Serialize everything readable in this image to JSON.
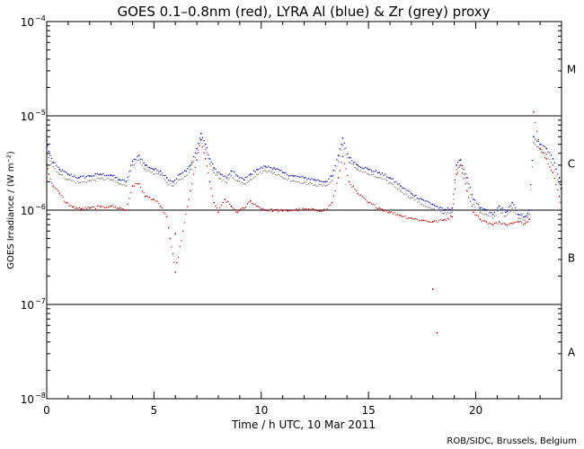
{
  "chart_data": {
    "type": "scatter",
    "title": "GOES 0.1–0.8nm (red), LYRA Al (blue) & Zr (grey) proxy",
    "xlabel": "Time / h UTC, 10 Mar 2011",
    "ylabel": "GOES Irradiance / (W m⁻²)",
    "xlim": [
      0,
      24
    ],
    "ylim_log10": [
      -8,
      -4
    ],
    "x_ticks": [
      {
        "value": 0,
        "label": "0"
      },
      {
        "value": 5,
        "label": "5"
      },
      {
        "value": 10,
        "label": "10"
      },
      {
        "value": 15,
        "label": "15"
      },
      {
        "value": 20,
        "label": "20"
      }
    ],
    "y_ticks": [
      {
        "exp": -8,
        "base": "10",
        "sup": "−8"
      },
      {
        "exp": -7,
        "base": "10",
        "sup": "−7"
      },
      {
        "exp": -6,
        "base": "10",
        "sup": "−6"
      },
      {
        "exp": -5,
        "base": "10",
        "sup": "−5"
      },
      {
        "exp": -4,
        "base": "10",
        "sup": "−4"
      }
    ],
    "flare_class_lines": [
      -7,
      -6,
      -5
    ],
    "flare_classes": [
      {
        "label": "A",
        "center_exp": -7.5
      },
      {
        "label": "B",
        "center_exp": -6.5
      },
      {
        "label": "C",
        "center_exp": -5.5
      },
      {
        "label": "M",
        "center_exp": -4.5
      }
    ],
    "credit": "ROB/SIDC, Brussels, Belgium",
    "series": [
      {
        "name": "LYRA Al proxy",
        "color": "#0000cc",
        "points": [
          [
            0.0,
            5.5e-06
          ],
          [
            0.1,
            4.2e-06
          ],
          [
            0.3,
            3.2e-06
          ],
          [
            0.6,
            2.7e-06
          ],
          [
            1.0,
            2.4e-06
          ],
          [
            1.5,
            2.2e-06
          ],
          [
            2.0,
            2.3e-06
          ],
          [
            2.5,
            2.4e-06
          ],
          [
            3.0,
            2.35e-06
          ],
          [
            3.4,
            2.1e-06
          ],
          [
            3.7,
            2e-06
          ],
          [
            4.0,
            3.3e-06
          ],
          [
            4.3,
            3.8e-06
          ],
          [
            4.6,
            3e-06
          ],
          [
            5.0,
            2.7e-06
          ],
          [
            5.3,
            2.6e-06
          ],
          [
            5.6,
            2.2e-06
          ],
          [
            5.9,
            2e-06
          ],
          [
            6.2,
            2.4e-06
          ],
          [
            6.5,
            2.6e-06
          ],
          [
            6.7,
            3e-06
          ],
          [
            7.0,
            4.5e-06
          ],
          [
            7.2,
            6.5e-06
          ],
          [
            7.4,
            5e-06
          ],
          [
            7.6,
            3.5e-06
          ],
          [
            7.8,
            2.8e-06
          ],
          [
            8.1,
            2.4e-06
          ],
          [
            8.4,
            2.2e-06
          ],
          [
            8.6,
            2.6e-06
          ],
          [
            8.9,
            2.3e-06
          ],
          [
            9.2,
            2.1e-06
          ],
          [
            9.5,
            2.4e-06
          ],
          [
            9.8,
            2.7e-06
          ],
          [
            10.2,
            2.9e-06
          ],
          [
            10.6,
            2.8e-06
          ],
          [
            11.0,
            2.5e-06
          ],
          [
            11.5,
            2.3e-06
          ],
          [
            12.0,
            2.2e-06
          ],
          [
            12.5,
            2.1e-06
          ],
          [
            13.0,
            2e-06
          ],
          [
            13.3,
            2.3e-06
          ],
          [
            13.6,
            3.8e-06
          ],
          [
            13.8,
            5.8e-06
          ],
          [
            14.1,
            3.6e-06
          ],
          [
            14.5,
            3e-06
          ],
          [
            15.0,
            2.7e-06
          ],
          [
            15.5,
            2.5e-06
          ],
          [
            16.0,
            2.2e-06
          ],
          [
            16.5,
            1.8e-06
          ],
          [
            17.0,
            1.5e-06
          ],
          [
            17.5,
            1.3e-06
          ],
          [
            18.0,
            1.15e-06
          ],
          [
            18.5,
            1e-06
          ],
          [
            18.9,
            1.05e-06
          ],
          [
            19.1,
            3e-06
          ],
          [
            19.3,
            3.4e-06
          ],
          [
            19.6,
            2.2e-06
          ],
          [
            19.9,
            1.3e-06
          ],
          [
            20.2,
            1.05e-06
          ],
          [
            20.5,
            1e-06
          ],
          [
            20.8,
            9e-07
          ],
          [
            21.1,
            1.1e-06
          ],
          [
            21.4,
            9.5e-07
          ],
          [
            21.7,
            1.2e-06
          ],
          [
            22.0,
            9e-07
          ],
          [
            22.3,
            8.5e-07
          ],
          [
            22.5,
            1e-06
          ],
          [
            22.7,
            6e-06
          ],
          [
            23.0,
            5e-06
          ],
          [
            23.3,
            4.5e-06
          ],
          [
            23.6,
            3.5e-06
          ],
          [
            23.9,
            2.2e-06
          ],
          [
            24.0,
            1.7e-06
          ]
        ]
      },
      {
        "name": "LYRA Zr proxy",
        "color": "#808080",
        "points": [
          [
            0.0,
            4.6e-06
          ],
          [
            0.1,
            3.6e-06
          ],
          [
            0.3,
            2.9e-06
          ],
          [
            0.6,
            2.4e-06
          ],
          [
            1.0,
            2.1e-06
          ],
          [
            1.5,
            1.95e-06
          ],
          [
            2.0,
            2.05e-06
          ],
          [
            2.5,
            2.15e-06
          ],
          [
            3.0,
            2.1e-06
          ],
          [
            3.4,
            1.9e-06
          ],
          [
            3.7,
            1.8e-06
          ],
          [
            4.0,
            3e-06
          ],
          [
            4.3,
            3.4e-06
          ],
          [
            4.6,
            2.7e-06
          ],
          [
            5.0,
            2.4e-06
          ],
          [
            5.3,
            2.35e-06
          ],
          [
            5.6,
            1.95e-06
          ],
          [
            5.9,
            1.8e-06
          ],
          [
            6.2,
            2.1e-06
          ],
          [
            6.5,
            2.3e-06
          ],
          [
            6.7,
            2.7e-06
          ],
          [
            7.0,
            4e-06
          ],
          [
            7.2,
            5.5e-06
          ],
          [
            7.4,
            4.4e-06
          ],
          [
            7.6,
            3.1e-06
          ],
          [
            7.8,
            2.5e-06
          ],
          [
            8.1,
            2.15e-06
          ],
          [
            8.4,
            1.95e-06
          ],
          [
            8.6,
            2.3e-06
          ],
          [
            8.9,
            2.05e-06
          ],
          [
            9.2,
            1.9e-06
          ],
          [
            9.5,
            2.1e-06
          ],
          [
            9.8,
            2.4e-06
          ],
          [
            10.2,
            2.6e-06
          ],
          [
            10.6,
            2.5e-06
          ],
          [
            11.0,
            2.2e-06
          ],
          [
            11.5,
            2.05e-06
          ],
          [
            12.0,
            1.95e-06
          ],
          [
            12.5,
            1.85e-06
          ],
          [
            13.0,
            1.8e-06
          ],
          [
            13.3,
            2.05e-06
          ],
          [
            13.6,
            3.3e-06
          ],
          [
            13.8,
            4.9e-06
          ],
          [
            14.1,
            3.2e-06
          ],
          [
            14.5,
            2.7e-06
          ],
          [
            15.0,
            2.4e-06
          ],
          [
            15.5,
            2.2e-06
          ],
          [
            16.0,
            1.95e-06
          ],
          [
            16.5,
            1.6e-06
          ],
          [
            17.0,
            1.35e-06
          ],
          [
            17.5,
            1.15e-06
          ],
          [
            18.0,
            1.02e-06
          ],
          [
            18.5,
            9.2e-07
          ],
          [
            18.9,
            9.5e-07
          ],
          [
            19.1,
            2.7e-06
          ],
          [
            19.3,
            3e-06
          ],
          [
            19.6,
            1.95e-06
          ],
          [
            19.9,
            1.15e-06
          ],
          [
            20.2,
            9.5e-07
          ],
          [
            20.5,
            9e-07
          ],
          [
            20.8,
            8.2e-07
          ],
          [
            21.1,
            1e-06
          ],
          [
            21.4,
            8.6e-07
          ],
          [
            21.7,
            1.05e-06
          ],
          [
            22.0,
            8.2e-07
          ],
          [
            22.3,
            7.8e-07
          ],
          [
            22.5,
            9e-07
          ],
          [
            22.7,
            5.2e-06
          ],
          [
            23.0,
            4.4e-06
          ],
          [
            23.3,
            3.9e-06
          ],
          [
            23.6,
            3e-06
          ],
          [
            23.9,
            1.9e-06
          ],
          [
            24.0,
            1.5e-06
          ]
        ]
      },
      {
        "name": "GOES 0.1-0.8nm",
        "color": "#cc0000",
        "points": [
          [
            0.0,
            3e-06
          ],
          [
            0.1,
            2.4e-06
          ],
          [
            0.3,
            1.8e-06
          ],
          [
            0.6,
            1.5e-06
          ],
          [
            0.9,
            1.2e-06
          ],
          [
            1.2,
            1.08e-06
          ],
          [
            1.6,
            1.03e-06
          ],
          [
            2.0,
            1.05e-06
          ],
          [
            2.5,
            1.08e-06
          ],
          [
            3.0,
            1.1e-06
          ],
          [
            3.4,
            1.05e-06
          ],
          [
            3.7,
            1e-06
          ],
          [
            4.0,
            1.8e-06
          ],
          [
            4.3,
            1.9e-06
          ],
          [
            4.6,
            1.4e-06
          ],
          [
            5.0,
            1.3e-06
          ],
          [
            5.3,
            1.1e-06
          ],
          [
            5.6,
            8.5e-07
          ],
          [
            5.75,
            5e-07
          ],
          [
            6.0,
            2.2e-07
          ],
          [
            6.7,
            1.6e-06
          ],
          [
            7.0,
            3.4e-06
          ],
          [
            7.2,
            5.6e-06
          ],
          [
            7.4,
            3.5e-06
          ],
          [
            7.6,
            2e-06
          ],
          [
            7.8,
            1.2e-06
          ],
          [
            8.0,
            9.5e-07
          ],
          [
            8.3,
            1.3e-06
          ],
          [
            8.6,
            1.1e-06
          ],
          [
            8.9,
            9.5e-07
          ],
          [
            9.2,
            1.05e-06
          ],
          [
            9.5,
            1.25e-06
          ],
          [
            9.8,
            1.1e-06
          ],
          [
            10.2,
            1e-06
          ],
          [
            10.6,
            1e-06
          ],
          [
            11.0,
            9.8e-07
          ],
          [
            11.5,
            1e-06
          ],
          [
            12.0,
            1.02e-06
          ],
          [
            12.5,
            1e-06
          ],
          [
            13.0,
            1e-06
          ],
          [
            13.3,
            1.2e-06
          ],
          [
            13.6,
            2.2e-06
          ],
          [
            13.8,
            3.7e-06
          ],
          [
            14.1,
            2e-06
          ],
          [
            14.5,
            1.5e-06
          ],
          [
            15.0,
            1.2e-06
          ],
          [
            15.5,
            1.05e-06
          ],
          [
            16.0,
            9.5e-07
          ],
          [
            16.5,
            8.8e-07
          ],
          [
            17.0,
            8.2e-07
          ],
          [
            17.5,
            7.8e-07
          ],
          [
            18.0,
            7.5e-07
          ],
          [
            18.5,
            7.8e-07
          ],
          [
            18.9,
            8.5e-07
          ],
          [
            19.1,
            2.4e-06
          ],
          [
            19.3,
            3e-06
          ],
          [
            19.6,
            1.6e-06
          ],
          [
            19.9,
            9.5e-07
          ],
          [
            20.2,
            8e-07
          ],
          [
            20.5,
            7.5e-07
          ],
          [
            20.8,
            7e-07
          ],
          [
            21.1,
            7.5e-07
          ],
          [
            21.4,
            7e-07
          ],
          [
            21.7,
            7.2e-07
          ],
          [
            22.0,
            7.5e-07
          ],
          [
            22.3,
            7.2e-07
          ],
          [
            22.5,
            8e-07
          ],
          [
            22.7,
            1.1e-05
          ],
          [
            23.0,
            4.5e-06
          ],
          [
            23.3,
            3.5e-06
          ],
          [
            23.6,
            2.5e-06
          ],
          [
            23.9,
            1.4e-06
          ],
          [
            24.0,
            1e-06
          ]
        ]
      }
    ],
    "outliers": [
      {
        "x": 6.0,
        "y": 5.6e-07,
        "color": "#cc0000"
      },
      {
        "x": 18.0,
        "y": 1.45e-07,
        "color": "#cc0000"
      },
      {
        "x": 18.2,
        "y": 5e-08,
        "color": "#cc0000"
      }
    ]
  }
}
